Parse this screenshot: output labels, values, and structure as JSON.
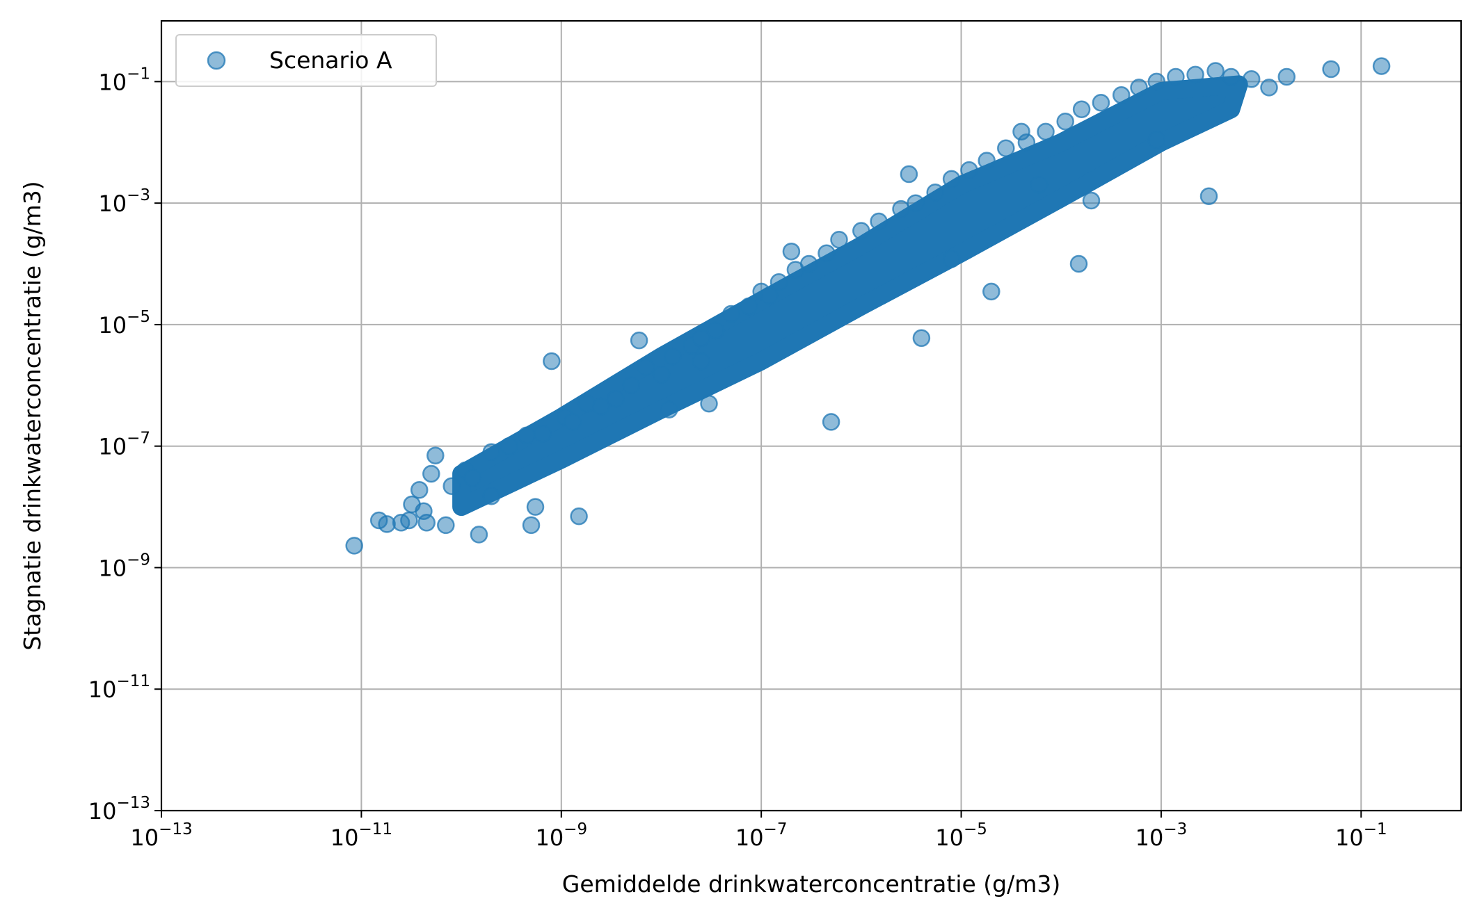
{
  "chart_data": {
    "type": "scatter",
    "xlabel": "Gemiddelde drinkwaterconcentratie (g/m3)",
    "ylabel": "Stagnatie drinkwaterconcentratie (g/m3)",
    "x_scale": "log",
    "y_scale": "log",
    "xlim": [
      1e-13,
      1
    ],
    "ylim": [
      1e-13,
      1
    ],
    "x_ticks": [
      {
        "value": 1e-13,
        "base": "10",
        "exp": "−13"
      },
      {
        "value": 1e-11,
        "base": "10",
        "exp": "−11"
      },
      {
        "value": 1e-09,
        "base": "10",
        "exp": "−9"
      },
      {
        "value": 1e-07,
        "base": "10",
        "exp": "−7"
      },
      {
        "value": 1e-05,
        "base": "10",
        "exp": "−5"
      },
      {
        "value": 0.001,
        "base": "10",
        "exp": "−3"
      },
      {
        "value": 0.1,
        "base": "10",
        "exp": "−1"
      }
    ],
    "y_ticks": [
      {
        "value": 1e-13,
        "base": "10",
        "exp": "−13"
      },
      {
        "value": 1e-11,
        "base": "10",
        "exp": "−11"
      },
      {
        "value": 1e-09,
        "base": "10",
        "exp": "−9"
      },
      {
        "value": 1e-07,
        "base": "10",
        "exp": "−7"
      },
      {
        "value": 1e-05,
        "base": "10",
        "exp": "−5"
      },
      {
        "value": 0.001,
        "base": "10",
        "exp": "−3"
      },
      {
        "value": 0.1,
        "base": "10",
        "exp": "−1"
      }
    ],
    "grid": true,
    "legend_position": "top-left",
    "series": [
      {
        "name": "Scenario A",
        "color": "#1f77b4",
        "alpha": 0.5,
        "x": [
          8.5e-12,
          1.5e-11,
          1.8e-11,
          2.5e-11,
          3.2e-11,
          3e-11,
          3.8e-11,
          4.2e-11,
          5e-11,
          5.5e-11,
          4.5e-11,
          7e-11,
          8e-11,
          1.1e-10,
          1.3e-10,
          1.5e-10,
          2e-10,
          3e-10,
          4.5e-10,
          5e-10,
          6.5e-10,
          5.5e-10,
          1.1e-09,
          1.5e-09,
          1.3e-09,
          1.8e-09,
          2.5e-09,
          3.5e-09,
          5e-09,
          7e-09,
          1e-08,
          1.3e-08,
          2e-08,
          2.5e-08,
          3.5e-08,
          5e-08,
          7.5e-08,
          1e-07,
          1.5e-07,
          2.2e-07,
          3e-07,
          4.5e-07,
          6e-07,
          1e-06,
          1.5e-06,
          2.5e-06,
          3.5e-06,
          5.5e-06,
          8e-06,
          1.2e-05,
          1.8e-05,
          2.8e-05,
          4.5e-05,
          7e-05,
          0.00011,
          0.00016,
          0.00025,
          0.0004,
          0.0006,
          0.0009,
          0.0014,
          0.0022,
          0.0035,
          0.005,
          0.008,
          0.012,
          0.018,
          0.05,
          0.16,
          2e-07,
          3e-06,
          4e-05,
          6e-09,
          8e-10,
          2e-10,
          1.2e-08,
          3e-08,
          5e-07,
          8e-06,
          0.0002,
          2e-05,
          6e-05,
          0.003,
          1.2e-07,
          4e-06,
          0.00015,
          0.0009,
          2.5e-08
        ],
        "y": [
          2.3e-09,
          6e-09,
          5.2e-09,
          5.5e-09,
          1.1e-08,
          6e-09,
          1.9e-08,
          8.5e-09,
          3.5e-08,
          7e-08,
          5.5e-09,
          5e-09,
          2.2e-08,
          4e-08,
          3e-08,
          3.5e-09,
          8e-08,
          1e-07,
          1.5e-07,
          5e-09,
          1.6e-07,
          1e-08,
          3e-07,
          7e-09,
          2.5e-07,
          5e-07,
          4.5e-07,
          6e-07,
          1e-06,
          2e-06,
          1.5e-06,
          3e-06,
          4.5e-06,
          6e-06,
          8e-06,
          1.5e-05,
          2e-05,
          3.5e-05,
          5e-05,
          8e-05,
          0.0001,
          0.00015,
          0.00025,
          0.00035,
          0.0005,
          0.0008,
          0.001,
          0.0015,
          0.0025,
          0.0035,
          0.005,
          0.008,
          0.01,
          0.015,
          0.022,
          0.035,
          0.045,
          0.06,
          0.08,
          0.1,
          0.12,
          0.13,
          0.15,
          0.12,
          0.11,
          0.08,
          0.12,
          0.16,
          0.18,
          0.00016,
          0.003,
          0.015,
          5.5e-06,
          2.5e-06,
          1.5e-08,
          4e-07,
          5e-07,
          2.5e-07,
          0.00012,
          0.0011,
          3.5e-05,
          0.002,
          0.0013,
          3e-05,
          6e-06,
          0.0001,
          0.011,
          2.5e-06
        ]
      }
    ]
  }
}
